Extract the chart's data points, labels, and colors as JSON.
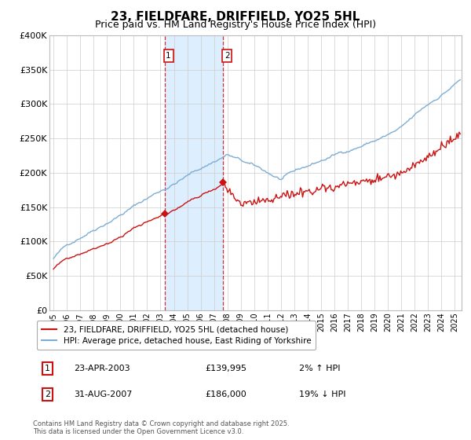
{
  "title": "23, FIELDFARE, DRIFFIELD, YO25 5HL",
  "subtitle": "Price paid vs. HM Land Registry's House Price Index (HPI)",
  "ylim": [
    0,
    400000
  ],
  "xlim_start": 1994.7,
  "xlim_end": 2025.5,
  "yticks": [
    0,
    50000,
    100000,
    150000,
    200000,
    250000,
    300000,
    350000,
    400000
  ],
  "ytick_labels": [
    "£0",
    "£50K",
    "£100K",
    "£150K",
    "£200K",
    "£250K",
    "£300K",
    "£350K",
    "£400K"
  ],
  "transaction1": {
    "date": "23-APR-2003",
    "price": 139995,
    "x": 2003.3,
    "pct": "2%",
    "dir": "↑"
  },
  "transaction2": {
    "date": "31-AUG-2007",
    "price": 186000,
    "x": 2007.67,
    "pct": "19%",
    "dir": "↓"
  },
  "shade_x1": 2003.3,
  "shade_x2": 2007.67,
  "line1_color": "#cc1111",
  "line2_color": "#7dadd4",
  "shade_color": "#ddeeff",
  "marker_color": "#cc1111",
  "vline_color": "#cc1111",
  "legend1": "23, FIELDFARE, DRIFFIELD, YO25 5HL (detached house)",
  "legend2": "HPI: Average price, detached house, East Riding of Yorkshire",
  "footer": "Contains HM Land Registry data © Crown copyright and database right 2025.\nThis data is licensed under the Open Government Licence v3.0.",
  "grid_color": "#cccccc",
  "title_fontsize": 11,
  "subtitle_fontsize": 9
}
